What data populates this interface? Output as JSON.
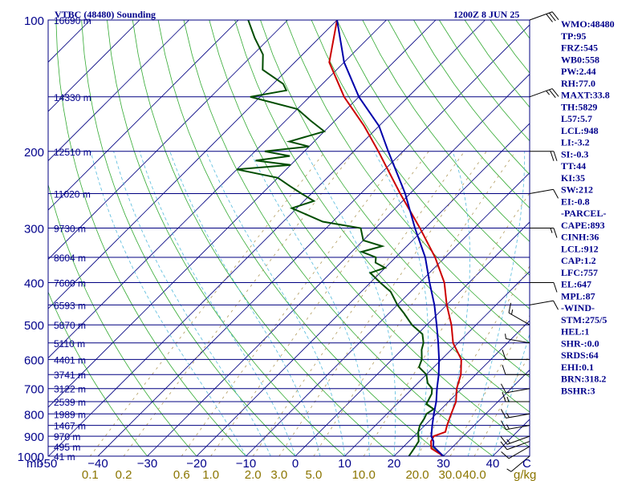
{
  "chart_data": {
    "type": "line",
    "title": "VTBC (48480) Sounding",
    "valid_time": "1200Z  8 JUN 25",
    "pressure_levels": [
      100,
      200,
      300,
      400,
      500,
      600,
      700,
      800,
      900,
      1000
    ],
    "pressure_axis_unit": "mb",
    "height_labels": [
      {
        "p": 100,
        "text": "16690 m"
      },
      {
        "p": 150,
        "text": "14330 m"
      },
      {
        "p": 200,
        "text": "12510 m"
      },
      {
        "p": 250,
        "text": "11020 m"
      },
      {
        "p": 300,
        "text": "9730 m"
      },
      {
        "p": 350,
        "text": "8604 m"
      },
      {
        "p": 400,
        "text": "7600 m"
      },
      {
        "p": 450,
        "text": "6593 m"
      },
      {
        "p": 500,
        "text": "5870 m"
      },
      {
        "p": 550,
        "text": "5110 m"
      },
      {
        "p": 600,
        "text": "4401 m"
      },
      {
        "p": 650,
        "text": "3741 m"
      },
      {
        "p": 700,
        "text": "3122 m"
      },
      {
        "p": 750,
        "text": "2539 m"
      },
      {
        "p": 800,
        "text": "1989 m"
      },
      {
        "p": 850,
        "text": "1467 m"
      },
      {
        "p": 900,
        "text": "970 m"
      },
      {
        "p": 950,
        "text": "495 m"
      },
      {
        "p": 1000,
        "text": "41 m"
      }
    ],
    "temperature_ticks": [
      -50,
      -40,
      -30,
      -20,
      -10,
      0,
      10,
      20,
      30,
      40
    ],
    "temperature_ticks_text": [
      "-50",
      "−40",
      "−30",
      "−20",
      "−10",
      "0",
      "10",
      "20",
      "30",
      "40"
    ],
    "temperature_unit": "C",
    "mixing_ratio_ticks": [
      "0.1",
      "0.2",
      "0.6",
      "1.0",
      "2.0",
      "3.0",
      "5.0",
      "10.0",
      "20.0",
      "30.0",
      "40.0"
    ],
    "mixing_ratio_unit": "g/kg",
    "series": [
      {
        "name": "",
        "color": "#cc0000",
        "points": [
          [
            1000,
            30
          ],
          [
            980,
            28
          ],
          [
            960,
            26
          ],
          [
            925,
            24.5
          ],
          [
            900,
            24
          ],
          [
            880,
            25.5
          ],
          [
            850,
            24.5
          ],
          [
            800,
            23
          ],
          [
            750,
            21.5
          ],
          [
            700,
            19
          ],
          [
            650,
            17
          ],
          [
            600,
            14
          ],
          [
            550,
            9
          ],
          [
            500,
            5
          ],
          [
            450,
            0
          ],
          [
            400,
            -5
          ],
          [
            350,
            -12
          ],
          [
            300,
            -21
          ],
          [
            250,
            -32
          ],
          [
            200,
            -45
          ],
          [
            175,
            -53
          ],
          [
            150,
            -63
          ],
          [
            125,
            -73
          ],
          [
            100,
            -80
          ]
        ]
      },
      {
        "name": "",
        "color": "#004d00",
        "points": [
          [
            1000,
            23
          ],
          [
            960,
            22.5
          ],
          [
            925,
            22
          ],
          [
            880,
            20
          ],
          [
            850,
            19
          ],
          [
            820,
            18.5
          ],
          [
            800,
            18
          ],
          [
            780,
            18.5
          ],
          [
            760,
            16
          ],
          [
            740,
            15.5
          ],
          [
            720,
            15
          ],
          [
            700,
            14
          ],
          [
            680,
            12
          ],
          [
            650,
            10
          ],
          [
            625,
            7
          ],
          [
            600,
            6
          ],
          [
            570,
            4
          ],
          [
            550,
            3
          ],
          [
            525,
            1
          ],
          [
            500,
            -3
          ],
          [
            470,
            -7
          ],
          [
            450,
            -10
          ],
          [
            420,
            -14
          ],
          [
            400,
            -18
          ],
          [
            380,
            -22
          ],
          [
            370,
            -20
          ],
          [
            360,
            -23
          ],
          [
            350,
            -24
          ],
          [
            340,
            -28
          ],
          [
            330,
            -25
          ],
          [
            320,
            -30
          ],
          [
            300,
            -33
          ],
          [
            290,
            -42
          ],
          [
            270,
            -51
          ],
          [
            260,
            -48
          ],
          [
            250,
            -52
          ],
          [
            240,
            -56
          ],
          [
            230,
            -60
          ],
          [
            220,
            -70
          ],
          [
            215,
            -60
          ],
          [
            210,
            -68
          ],
          [
            205,
            -62
          ],
          [
            200,
            -68
          ],
          [
            195,
            -60
          ],
          [
            190,
            -65
          ],
          [
            180,
            -60
          ],
          [
            170,
            -65
          ],
          [
            160,
            -70
          ],
          [
            150,
            -82
          ],
          [
            145,
            -76
          ],
          [
            140,
            -78
          ],
          [
            130,
            -85
          ],
          [
            120,
            -88
          ],
          [
            110,
            -93
          ],
          [
            100,
            -98
          ]
        ]
      },
      {
        "name": "",
        "color": "#0000aa",
        "points": [
          [
            1000,
            30
          ],
          [
            950,
            26
          ],
          [
            925,
            25
          ],
          [
            900,
            23.5
          ],
          [
            850,
            21.5
          ],
          [
            800,
            19.5
          ],
          [
            750,
            17.5
          ],
          [
            700,
            15
          ],
          [
            650,
            12.5
          ],
          [
            600,
            9.5
          ],
          [
            550,
            6
          ],
          [
            500,
            2
          ],
          [
            450,
            -2.5
          ],
          [
            400,
            -8
          ],
          [
            350,
            -14
          ],
          [
            300,
            -22
          ],
          [
            250,
            -31
          ],
          [
            200,
            -43
          ],
          [
            175,
            -50
          ],
          [
            150,
            -60
          ],
          [
            125,
            -70
          ],
          [
            100,
            -80
          ]
        ]
      }
    ],
    "wind_barbs": [
      {
        "p": 1000,
        "dir": 230,
        "spd": 5
      },
      {
        "p": 950,
        "dir": 240,
        "spd": 10
      },
      {
        "p": 925,
        "dir": 250,
        "spd": 10
      },
      {
        "p": 900,
        "dir": 250,
        "spd": 15
      },
      {
        "p": 850,
        "dir": 260,
        "spd": 15
      },
      {
        "p": 800,
        "dir": 260,
        "spd": 15
      },
      {
        "p": 750,
        "dir": 270,
        "spd": 15
      },
      {
        "p": 700,
        "dir": 260,
        "spd": 10
      },
      {
        "p": 650,
        "dir": 270,
        "spd": 10
      },
      {
        "p": 600,
        "dir": 270,
        "spd": 10
      },
      {
        "p": 550,
        "dir": 280,
        "spd": 5
      },
      {
        "p": 500,
        "dir": 300,
        "spd": 15
      },
      {
        "p": 450,
        "dir": 80,
        "spd": 10
      },
      {
        "p": 400,
        "dir": 90,
        "spd": 10
      },
      {
        "p": 300,
        "dir": 90,
        "spd": 15
      },
      {
        "p": 250,
        "dir": 80,
        "spd": 10
      },
      {
        "p": 200,
        "dir": 90,
        "spd": 20
      },
      {
        "p": 150,
        "dir": 70,
        "spd": 25
      },
      {
        "p": 100,
        "dir": 70,
        "spd": 30
      }
    ],
    "indices": [
      "WMO:48480",
      "TP:95",
      "FRZ:545",
      "WB0:558",
      "PW:2.44",
      "RH:77.0",
      "MAXT:33.8",
      "TH:5829",
      "L57:5.7",
      "LCL:948",
      "LI:-3.2",
      "SI:-0.3",
      "TT:44",
      "KI:35",
      "SW:212",
      "EI:-0.8",
      "-PARCEL-",
      "CAPE:893",
      "CINH:36",
      "LCL:912",
      "CAP:1.2",
      "LFC:757",
      "EL:647",
      "MPL:87",
      "-WIND-",
      "STM:275/5",
      "HEL:1",
      "SHR-:0.0",
      "SRDS:64",
      "EHI:0.1",
      "BRN:318.2",
      "BSHR:3"
    ],
    "grid": true,
    "legend": "none"
  }
}
